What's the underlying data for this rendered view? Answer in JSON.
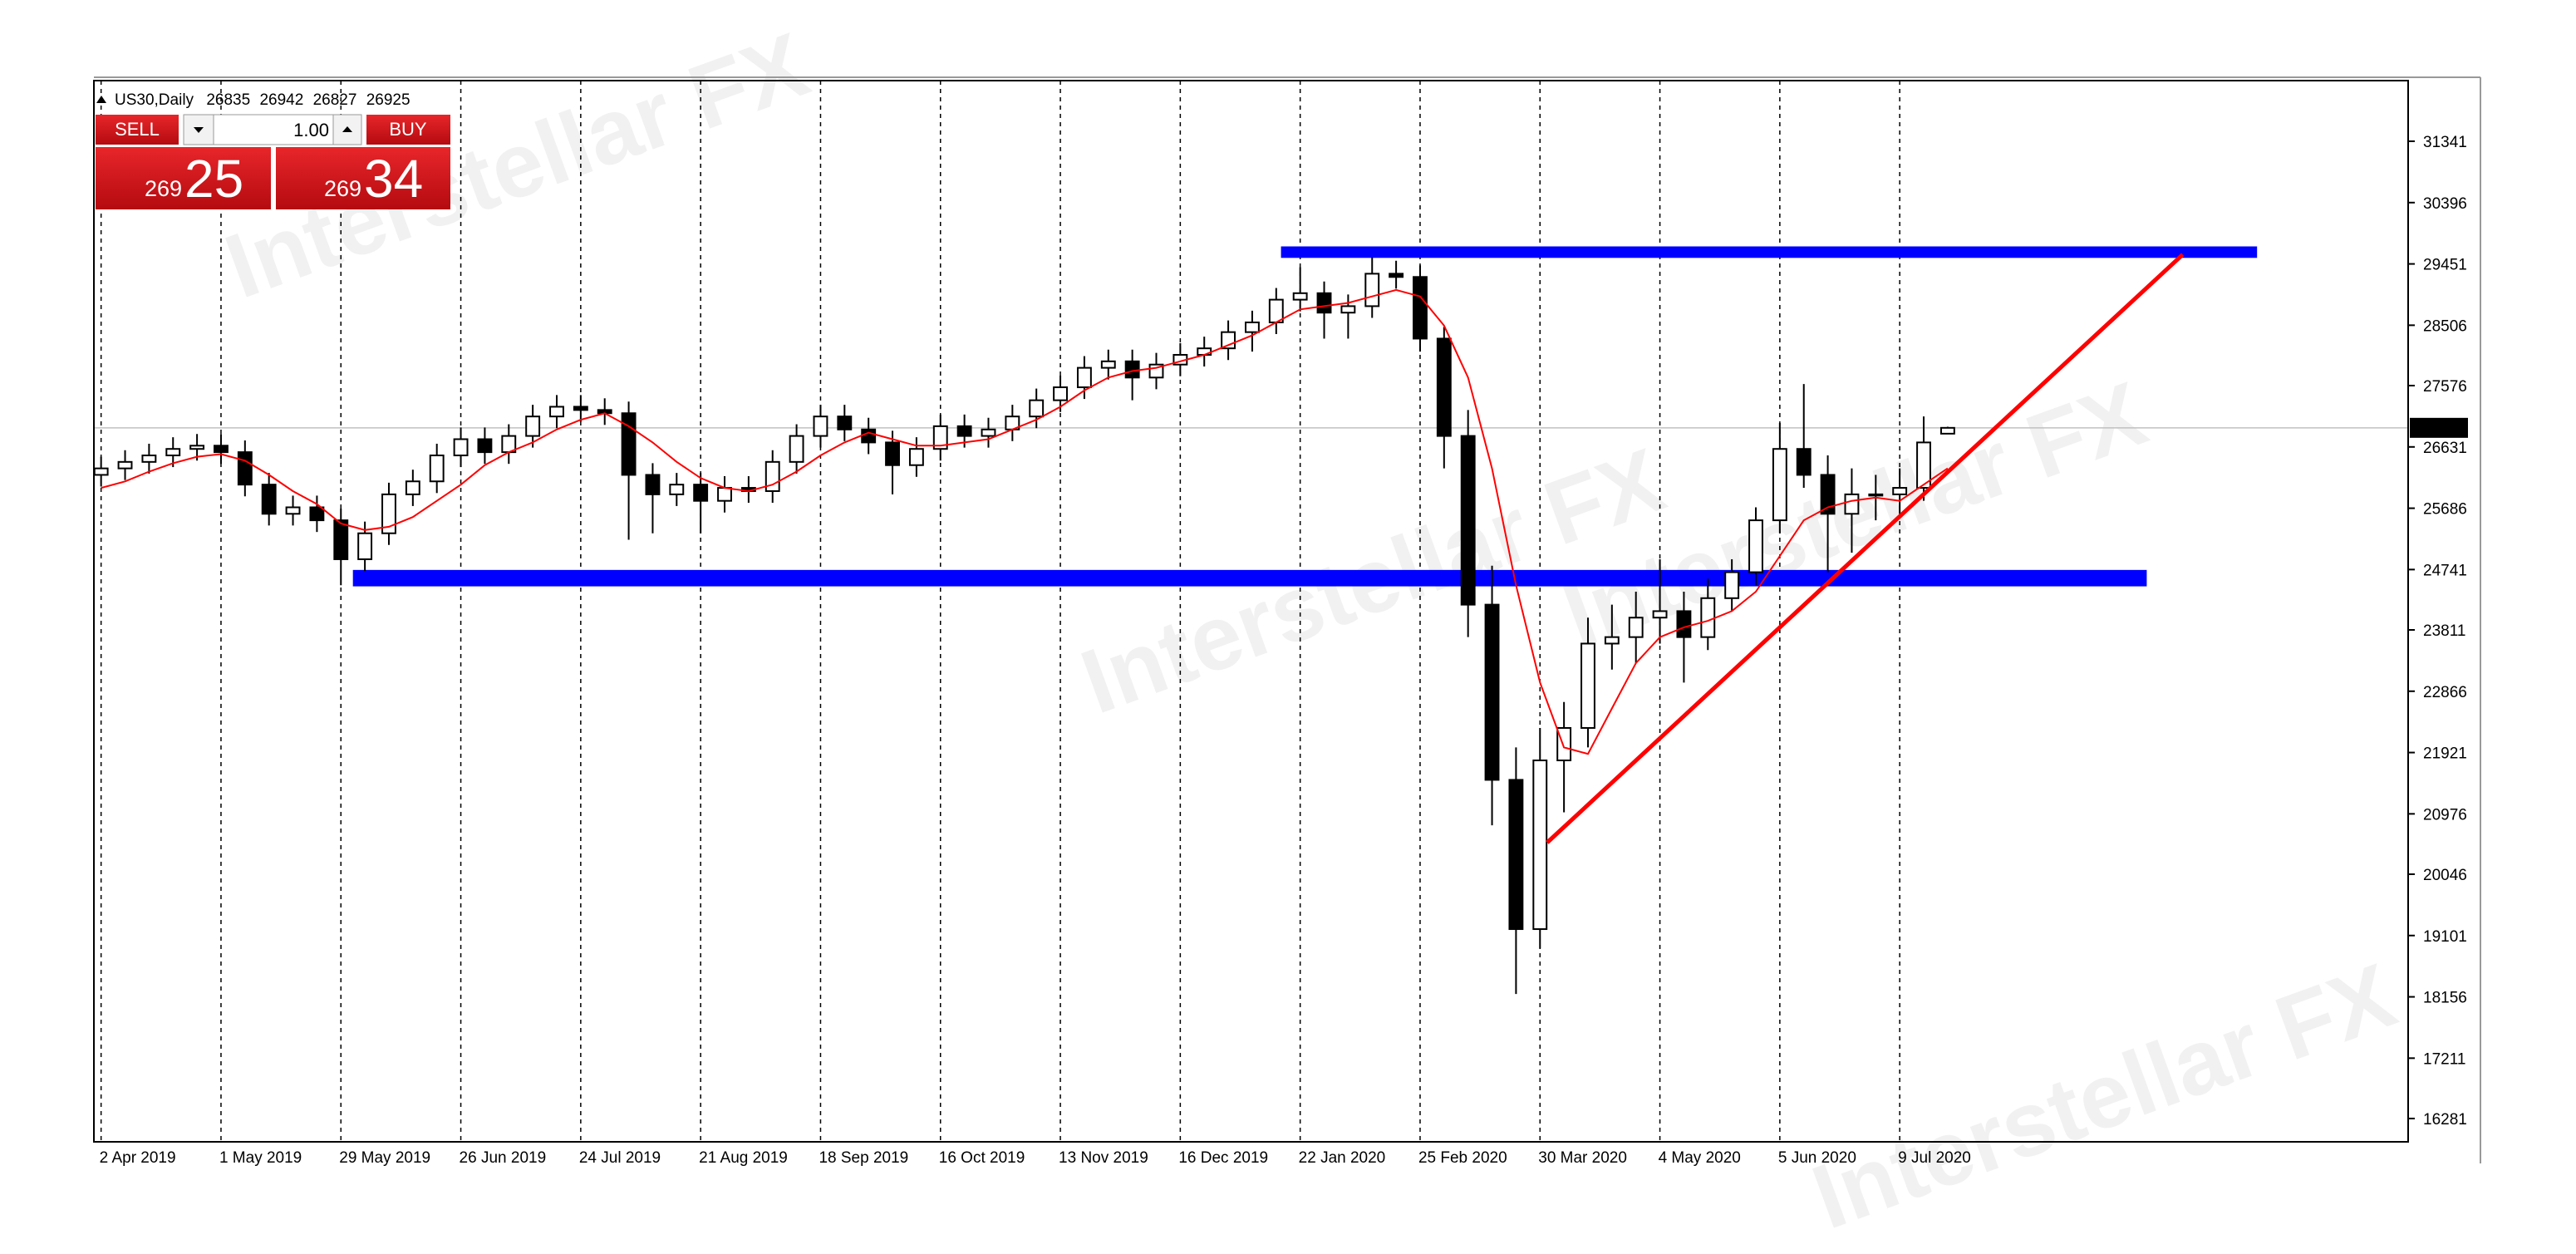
{
  "chart_data": {
    "type": "candlestick",
    "title": "US30,Daily",
    "header_values": [
      26835,
      26942,
      26827,
      26925
    ],
    "categories": [
      "2 Apr 2019",
      null,
      null,
      null,
      null,
      "1 May 2019",
      null,
      null,
      null,
      null,
      "29 May 2019",
      null,
      null,
      null,
      null,
      "26 Jun 2019",
      null,
      null,
      null,
      null,
      "24 Jul 2019",
      null,
      null,
      null,
      null,
      "21 Aug 2019",
      null,
      null,
      null,
      null,
      "18 Sep 2019",
      null,
      null,
      null,
      null,
      "16 Oct 2019",
      null,
      null,
      null,
      null,
      "13 Nov 2019",
      null,
      null,
      null,
      null,
      "16 Dec 2019",
      null,
      null,
      null,
      null,
      "22 Jan 2020",
      null,
      null,
      null,
      null,
      "25 Feb 2020",
      null,
      null,
      null,
      null,
      "30 Mar 2020",
      null,
      null,
      null,
      null,
      "4 May 2020",
      null,
      null,
      null,
      null,
      "5 Jun 2020",
      null,
      null,
      null,
      null,
      "9 Jul 2020",
      null,
      null
    ],
    "open": [
      26200,
      26300,
      26400,
      26500,
      26600,
      26650,
      26550,
      26050,
      25600,
      25700,
      25500,
      24900,
      25300,
      25900,
      26100,
      26500,
      26750,
      26550,
      26800,
      27100,
      27250,
      27200,
      27150,
      26200,
      25900,
      26050,
      25800,
      26000,
      25950,
      26400,
      26800,
      27100,
      26900,
      26700,
      26350,
      26600,
      26950,
      26800,
      26900,
      27100,
      27350,
      27550,
      27850,
      27950,
      27700,
      27900,
      28050,
      28150,
      28400,
      28550,
      28900,
      29000,
      28700,
      28800,
      29300,
      29250,
      28300,
      26800,
      24200,
      21500,
      19200,
      21800,
      22300,
      23600,
      23700,
      24000,
      24100,
      23700,
      24300,
      24700,
      25500,
      26600,
      26200,
      25600,
      25900,
      25900,
      26000,
      26835
    ],
    "high": [
      26480,
      26580,
      26680,
      26780,
      26830,
      26830,
      26730,
      26230,
      25880,
      25880,
      25680,
      25480,
      26080,
      26280,
      26680,
      26930,
      26930,
      26980,
      27280,
      27430,
      27430,
      27380,
      27330,
      26380,
      26230,
      26230,
      26180,
      26180,
      26580,
      26980,
      27280,
      27280,
      27080,
      26880,
      26780,
      27130,
      27130,
      27080,
      27280,
      27530,
      27730,
      28030,
      28130,
      28130,
      28080,
      28230,
      28330,
      28580,
      28730,
      29080,
      29400,
      29180,
      28980,
      29550,
      29500,
      29430,
      28480,
      27200,
      24800,
      22000,
      22300,
      22700,
      24000,
      24200,
      24400,
      24900,
      24400,
      24600,
      24900,
      25700,
      27000,
      27600,
      26500,
      26300,
      26200,
      26300,
      27100,
      26942
    ],
    "low": [
      26020,
      26120,
      26220,
      26320,
      26420,
      26370,
      25870,
      25420,
      25420,
      25320,
      24500,
      24720,
      25120,
      25720,
      25920,
      26320,
      26370,
      26370,
      26620,
      26920,
      27020,
      26970,
      25200,
      25300,
      25720,
      25300,
      25620,
      25770,
      25770,
      26220,
      26620,
      26720,
      26520,
      25900,
      26170,
      26420,
      26620,
      26620,
      26720,
      26920,
      27170,
      27370,
      27670,
      27350,
      27520,
      27720,
      27870,
      27970,
      28100,
      28370,
      28720,
      28300,
      28300,
      28620,
      29070,
      28100,
      26300,
      23700,
      20800,
      18200,
      18900,
      21000,
      22000,
      23200,
      23300,
      23600,
      23000,
      23500,
      24100,
      24500,
      25300,
      26000,
      24700,
      25000,
      25500,
      25600,
      25800,
      26827
    ],
    "close": [
      26300,
      26400,
      26500,
      26600,
      26650,
      26550,
      26050,
      25600,
      25700,
      25500,
      24900,
      25300,
      25900,
      26100,
      26500,
      26750,
      26550,
      26800,
      27100,
      27250,
      27200,
      27150,
      26200,
      25900,
      26050,
      25800,
      26000,
      25950,
      26400,
      26800,
      27100,
      26900,
      26700,
      26350,
      26600,
      26950,
      26800,
      26900,
      27100,
      27350,
      27550,
      27850,
      27950,
      27700,
      27900,
      28050,
      28150,
      28400,
      28550,
      28900,
      29000,
      28700,
      28800,
      29300,
      29250,
      28300,
      26800,
      24200,
      21500,
      19200,
      21800,
      22300,
      23600,
      23700,
      24000,
      24100,
      23700,
      24300,
      24700,
      25500,
      26600,
      26200,
      25600,
      25900,
      25900,
      26000,
      26700,
      26925
    ],
    "color_up": "#ffffff",
    "color_down": "#000000",
    "ma": {
      "color": "#ff0000",
      "values": [
        26000,
        26100,
        26250,
        26380,
        26480,
        26520,
        26420,
        26200,
        25950,
        25750,
        25450,
        25350,
        25400,
        25550,
        25800,
        26050,
        26350,
        26550,
        26700,
        26900,
        27050,
        27150,
        26950,
        26700,
        26400,
        26150,
        26000,
        25950,
        26050,
        26250,
        26500,
        26700,
        26850,
        26750,
        26650,
        26650,
        26700,
        26750,
        26900,
        27050,
        27250,
        27500,
        27700,
        27800,
        27850,
        27950,
        28050,
        28200,
        28350,
        28550,
        28750,
        28800,
        28850,
        28950,
        29050,
        28950,
        28500,
        27700,
        26300,
        24500,
        23000,
        22000,
        21900,
        22600,
        23300,
        23700,
        23850,
        23950,
        24100,
        24400,
        24950,
        25500,
        25700,
        25800,
        25850,
        25800,
        26050,
        26300
      ]
    },
    "xlim": [
      -0.3,
      96.2
    ],
    "ylim": [
      15922,
      32276
    ],
    "yticks": [
      16281,
      17211,
      18156,
      19101,
      20046,
      20976,
      21921,
      22866,
      23811,
      24741,
      25686,
      26631,
      27576,
      28506,
      29451,
      30396,
      31341
    ],
    "grid_x": true,
    "grid_y": false,
    "current_price": 26925,
    "zones": [
      {
        "from": 29544,
        "to": 29721,
        "x": [
          49.2,
          89.9
        ],
        "color": "#0000ff"
      },
      {
        "from": 24482,
        "to": 24735,
        "x": [
          10.5,
          85.3
        ],
        "color": "#0000ff"
      }
    ],
    "trendline": {
      "x": [
        60.3,
        86.8
      ],
      "y": [
        20534,
        29595
      ],
      "color": "#ff0000"
    }
  },
  "trade_panel": {
    "sell": "SELL",
    "lot": "1.00",
    "buy": "BUY",
    "bid_prefix": "269",
    "bid_main": "25",
    "ask_prefix": "269",
    "ask_main": "34"
  },
  "watermark": "Interstellar FX"
}
